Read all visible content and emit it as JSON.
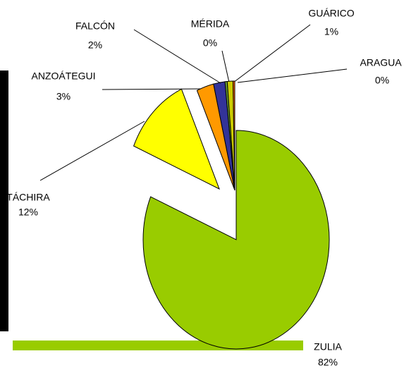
{
  "chart_data": {
    "type": "pie",
    "categories": [
      "ZULIA",
      "TÁCHIRA",
      "ANZOÁTEGUI",
      "FALCÓN",
      "MÉRIDA",
      "GUÁRICO",
      "ARAGUA"
    ],
    "values": [
      82,
      12,
      3,
      2,
      0.4,
      1,
      0.3
    ],
    "value_labels": [
      "82%",
      "12%",
      "3%",
      "2%",
      "0%",
      "1%",
      "0%"
    ],
    "colors": [
      "#99cc00",
      "#ffff00",
      "#ff9900",
      "#333399",
      "#669933",
      "#cccc00",
      "#ff6600"
    ]
  }
}
